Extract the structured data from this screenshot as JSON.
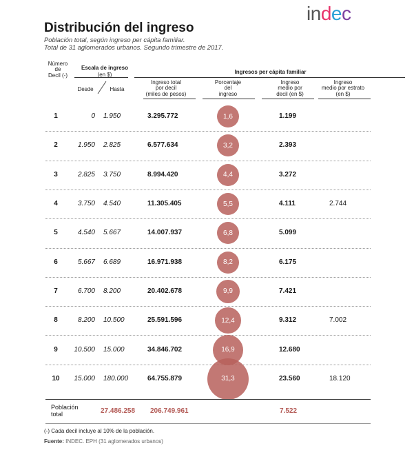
{
  "header": {
    "title": "Distribución del ingreso",
    "subtitle_line1": "Población total, según ingreso per cápita familiar.",
    "subtitle_line2": "Total de 31 aglomerados urbanos. Segundo trimestre de 2017.",
    "logo": "indec"
  },
  "columns": {
    "decil_l1": "Número",
    "decil_l2": "de",
    "decil_l3": "Decil (-)",
    "escala_l1": "Escala de ingreso",
    "escala_l2": "(en $)",
    "desde": "Desde",
    "hasta": "Hasta",
    "ingresos_group": "Ingresos per cápita familiar",
    "total_l1": "Ingreso total",
    "total_l2": "por decil",
    "total_l3": "(miles de pesos)",
    "pct_l1": "Porcentaje",
    "pct_l2": "del",
    "pct_l3": "ingreso",
    "medio_l1": "Ingreso",
    "medio_l2": "medio por",
    "medio_l3": "decil (en $)",
    "estrato_l1": "Ingreso",
    "estrato_l2": "medio por estrato",
    "estrato_l3": "(en $)"
  },
  "rows": [
    {
      "decil": "1",
      "desde": "0",
      "hasta": "1.950",
      "total": "3.295.772",
      "pct": "1,6",
      "pct_value": 1.6,
      "medio": "1.199",
      "estrato": ""
    },
    {
      "decil": "2",
      "desde": "1.950",
      "hasta": "2.825",
      "total": "6.577.634",
      "pct": "3,2",
      "pct_value": 3.2,
      "medio": "2.393",
      "estrato": ""
    },
    {
      "decil": "3",
      "desde": "2.825",
      "hasta": "3.750",
      "total": "8.994.420",
      "pct": "4,4",
      "pct_value": 4.4,
      "medio": "3.272",
      "estrato": ""
    },
    {
      "decil": "4",
      "desde": "3.750",
      "hasta": "4.540",
      "total": "11.305.405",
      "pct": "5,5",
      "pct_value": 5.5,
      "medio": "4.111",
      "estrato": "2.744"
    },
    {
      "decil": "5",
      "desde": "4.540",
      "hasta": "5.667",
      "total": "14.007.937",
      "pct": "6,8",
      "pct_value": 6.8,
      "medio": "5.099",
      "estrato": ""
    },
    {
      "decil": "6",
      "desde": "5.667",
      "hasta": "6.689",
      "total": "16.971.938",
      "pct": "8,2",
      "pct_value": 8.2,
      "medio": "6.175",
      "estrato": ""
    },
    {
      "decil": "7",
      "desde": "6.700",
      "hasta": "8.200",
      "total": "20.402.678",
      "pct": "9,9",
      "pct_value": 9.9,
      "medio": "7.421",
      "estrato": ""
    },
    {
      "decil": "8",
      "desde": "8.200",
      "hasta": "10.500",
      "total": "25.591.596",
      "pct": "12,4",
      "pct_value": 12.4,
      "medio": "9.312",
      "estrato": "7.002"
    },
    {
      "decil": "9",
      "desde": "10.500",
      "hasta": "15.000",
      "total": "34.846.702",
      "pct": "16,9",
      "pct_value": 16.9,
      "medio": "12.680",
      "estrato": ""
    },
    {
      "decil": "10",
      "desde": "15.000",
      "hasta": "180.000",
      "total": "64.755.879",
      "pct": "31,3",
      "pct_value": 31.3,
      "medio": "23.560",
      "estrato": "18.120"
    }
  ],
  "totals": {
    "label_l1": "Población",
    "label_l2": "total",
    "poblacion": "27.486.258",
    "ingreso_total": "206.749.961",
    "medio": "7.522"
  },
  "footer": {
    "note": "(-) Cada decil incluye al 10% de la población.",
    "source_label": "Fuente:",
    "source_text": "INDEC. EPH (31 aglomerados urbanos)"
  },
  "colors": {
    "bubble": "#b8615c",
    "totals_red": "#b35a55"
  }
}
